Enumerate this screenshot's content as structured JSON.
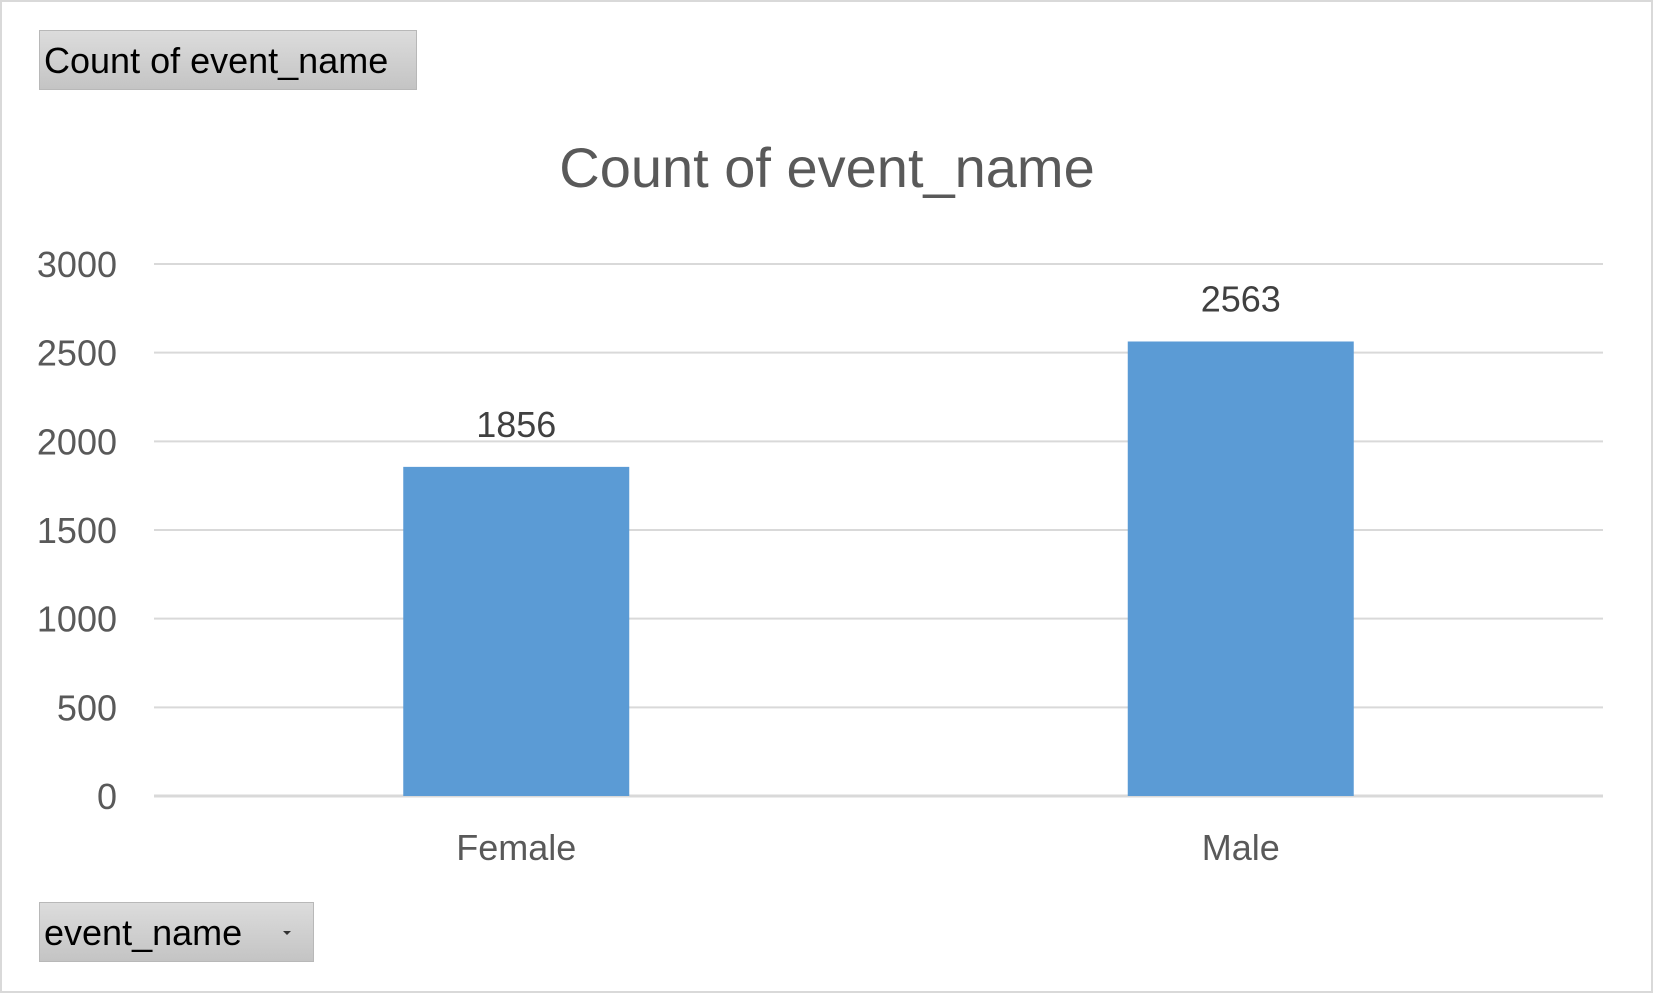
{
  "pivot": {
    "value_field": "Count of event_name",
    "axis_field": "event_name"
  },
  "chart_data": {
    "type": "bar",
    "title": "Count of event_name",
    "categories": [
      "Female",
      "Male"
    ],
    "series": [
      {
        "values": [
          1856,
          2563
        ]
      }
    ],
    "data_labels": [
      "1856",
      "2563"
    ],
    "y_ticks": [
      "0",
      "500",
      "1000",
      "1500",
      "2000",
      "2500",
      "3000"
    ],
    "ylim": [
      0,
      3000
    ],
    "grid": true,
    "bar_color": "#5B9BD5",
    "gridline_color": "#d9d9d9"
  }
}
